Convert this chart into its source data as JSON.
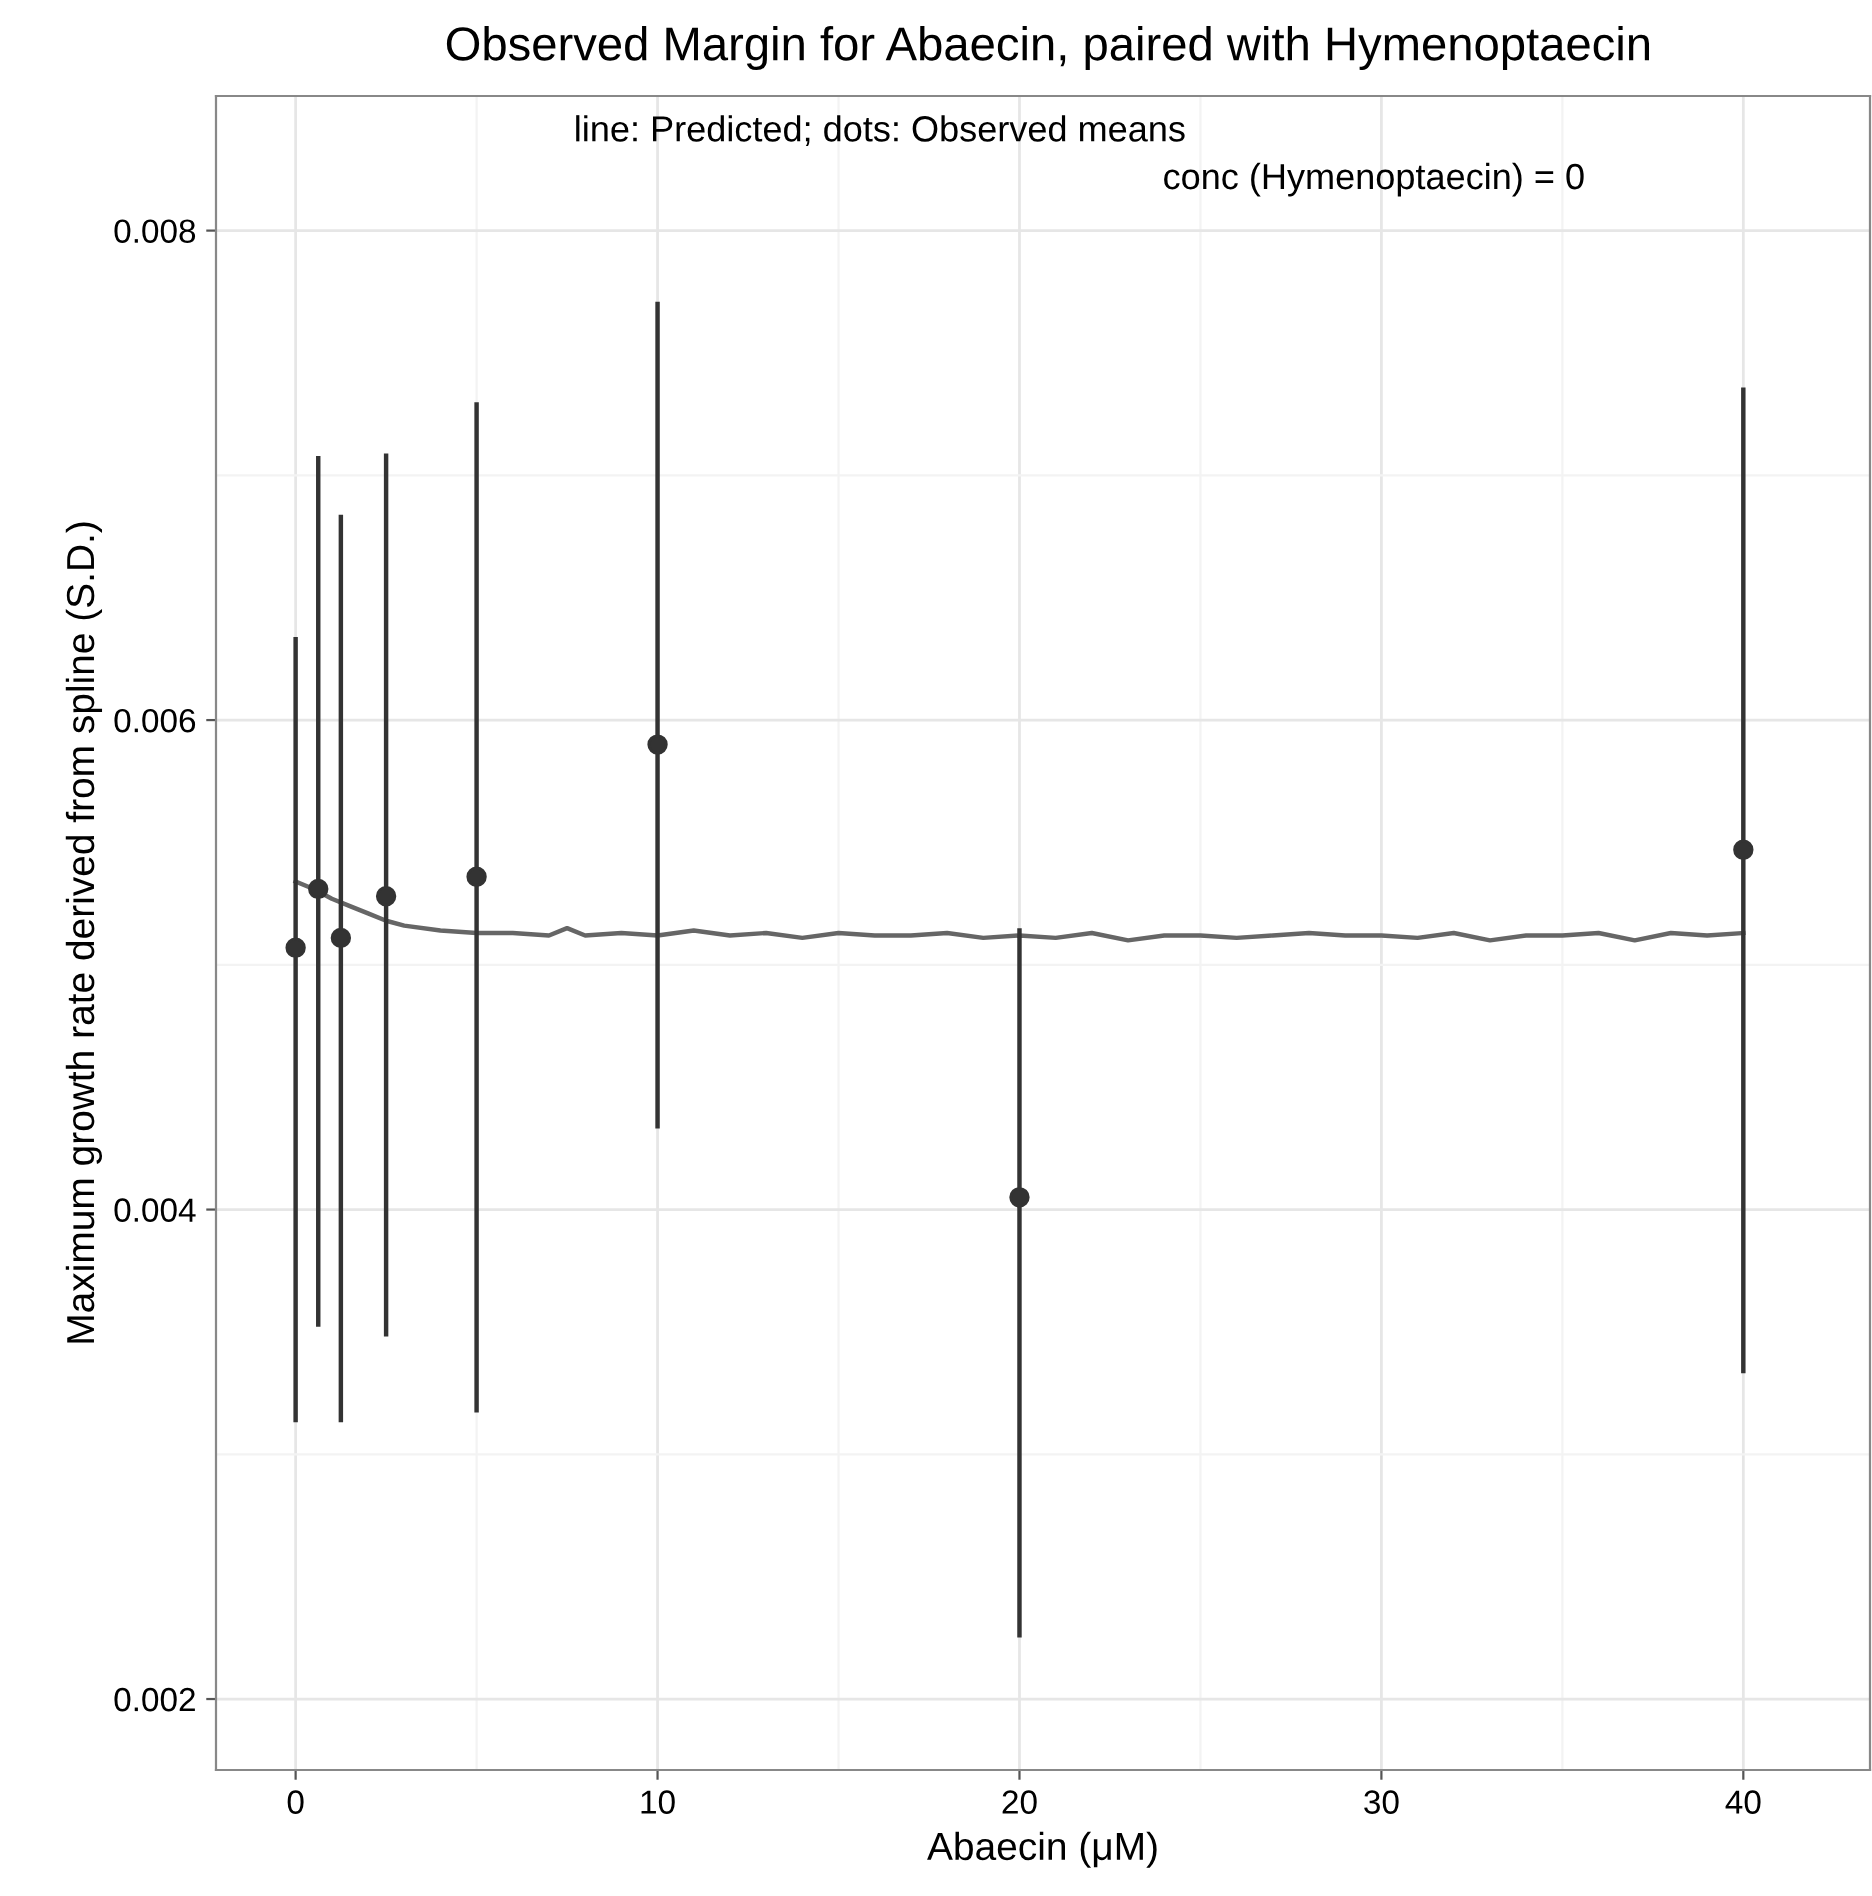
{
  "chart_data": {
    "type": "scatter",
    "title": "Observed Margin for Abaecin, paired with Hymenoptaecin",
    "subtitle": "line: Predicted; dots: Observed means",
    "xlabel": "Abaecin (μM)",
    "ylabel": "Maximum growth rate derived from spline (S.D.)",
    "annotations": [
      "conc (Hymenoptaecin) = 0"
    ],
    "series": [
      {
        "type": "line",
        "color": "#666666",
        "marker": "none",
        "x": [
          0,
          0.5,
          1,
          1.5,
          2,
          2.5,
          3,
          4,
          5,
          6,
          7,
          7.5,
          8,
          9,
          10,
          11,
          12,
          13,
          14,
          15,
          16,
          17,
          18,
          19,
          20,
          21,
          22,
          23,
          24,
          25,
          26,
          27,
          28,
          29,
          30,
          31,
          32,
          33,
          34,
          35,
          36,
          37,
          38,
          39,
          40
        ],
        "values": [
          0.00534,
          0.00531,
          0.00527,
          0.00524,
          0.00521,
          0.00518,
          0.00516,
          0.00514,
          0.00513,
          0.00513,
          0.00512,
          0.00515,
          0.00512,
          0.00513,
          0.00512,
          0.00514,
          0.00512,
          0.00513,
          0.00511,
          0.00513,
          0.00512,
          0.00512,
          0.00513,
          0.00511,
          0.00512,
          0.00511,
          0.00513,
          0.0051,
          0.00512,
          0.00512,
          0.00511,
          0.00512,
          0.00513,
          0.00512,
          0.00512,
          0.00511,
          0.00513,
          0.0051,
          0.00512,
          0.00512,
          0.00513,
          0.0051,
          0.00513,
          0.00512,
          0.00513
        ]
      },
      {
        "color": "#333333",
        "marker": "circle",
        "x": [
          0,
          0.625,
          1.25,
          2.5,
          5,
          10,
          20,
          40
        ],
        "values": [
          0.00507,
          0.00531,
          0.00511,
          0.00528,
          0.00536,
          0.0059,
          0.00405,
          0.00547
        ],
        "errors": [
          [
            0.00314,
            0.00633
          ],
          [
            0.00353,
            0.00707
          ],
          [
            0.00314,
            0.00683
          ],
          [
            0.00349,
            0.00708
          ],
          [
            0.00318,
            0.00729
          ],
          [
            0.00434,
            0.0077
          ],
          [
            0.00226,
            0.00514
          ],
          [
            0.00334,
            0.00735
          ]
        ]
      }
    ],
    "xlim": [
      -2.2,
      43.5
    ],
    "ylim": [
      0.00171,
      0.00855
    ],
    "xticks": [
      0,
      {
        "value": 5,
        "label": null
      },
      10,
      {
        "value": 15,
        "label": null
      },
      20,
      {
        "value": 25,
        "label": null
      },
      30,
      {
        "value": 35,
        "label": null
      },
      40
    ],
    "yticks": [
      0.002,
      {
        "value": 0.003,
        "label": null
      },
      0.004,
      {
        "value": 0.005,
        "label": null
      },
      0.006,
      {
        "value": 0.007,
        "label": null
      },
      0.008
    ],
    "grid": true,
    "line_style": "solid"
  }
}
